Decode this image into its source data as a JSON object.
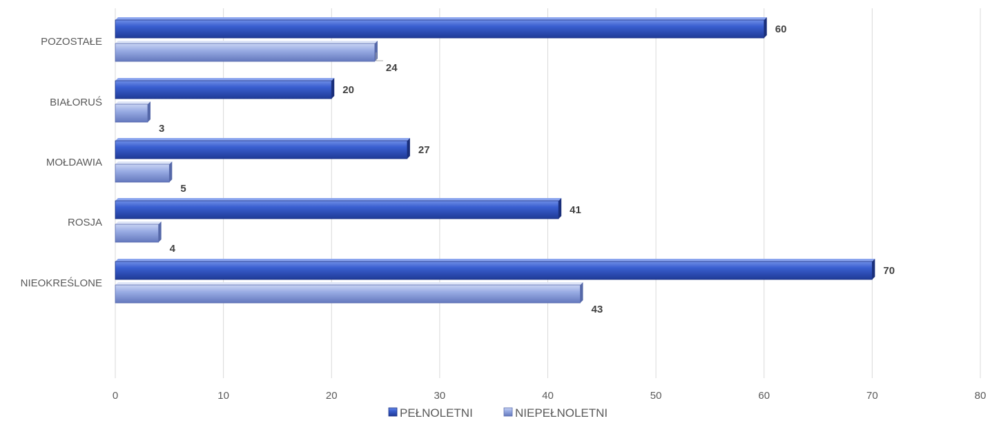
{
  "chart_data": {
    "type": "bar",
    "orientation": "horizontal",
    "title": "",
    "xlabel": "",
    "ylabel": "",
    "categories": [
      "NIEOKREŚLONE",
      "ROSJA",
      "MOŁDAWIA",
      "BIAŁORUŚ",
      "POZOSTAŁE"
    ],
    "series": [
      {
        "name": "PEŁNOLETNI",
        "values": [
          70,
          41,
          27,
          20,
          60
        ],
        "color": "#2f54c4"
      },
      {
        "name": "NIEPEŁNOLETNI",
        "values": [
          43,
          4,
          5,
          3,
          24
        ],
        "color": "#8ea3de"
      }
    ],
    "xlim": [
      0,
      80
    ],
    "xticks": [
      0,
      10,
      20,
      30,
      40,
      50,
      60,
      70,
      80
    ],
    "grid": "vertical",
    "legend": "bottom"
  }
}
